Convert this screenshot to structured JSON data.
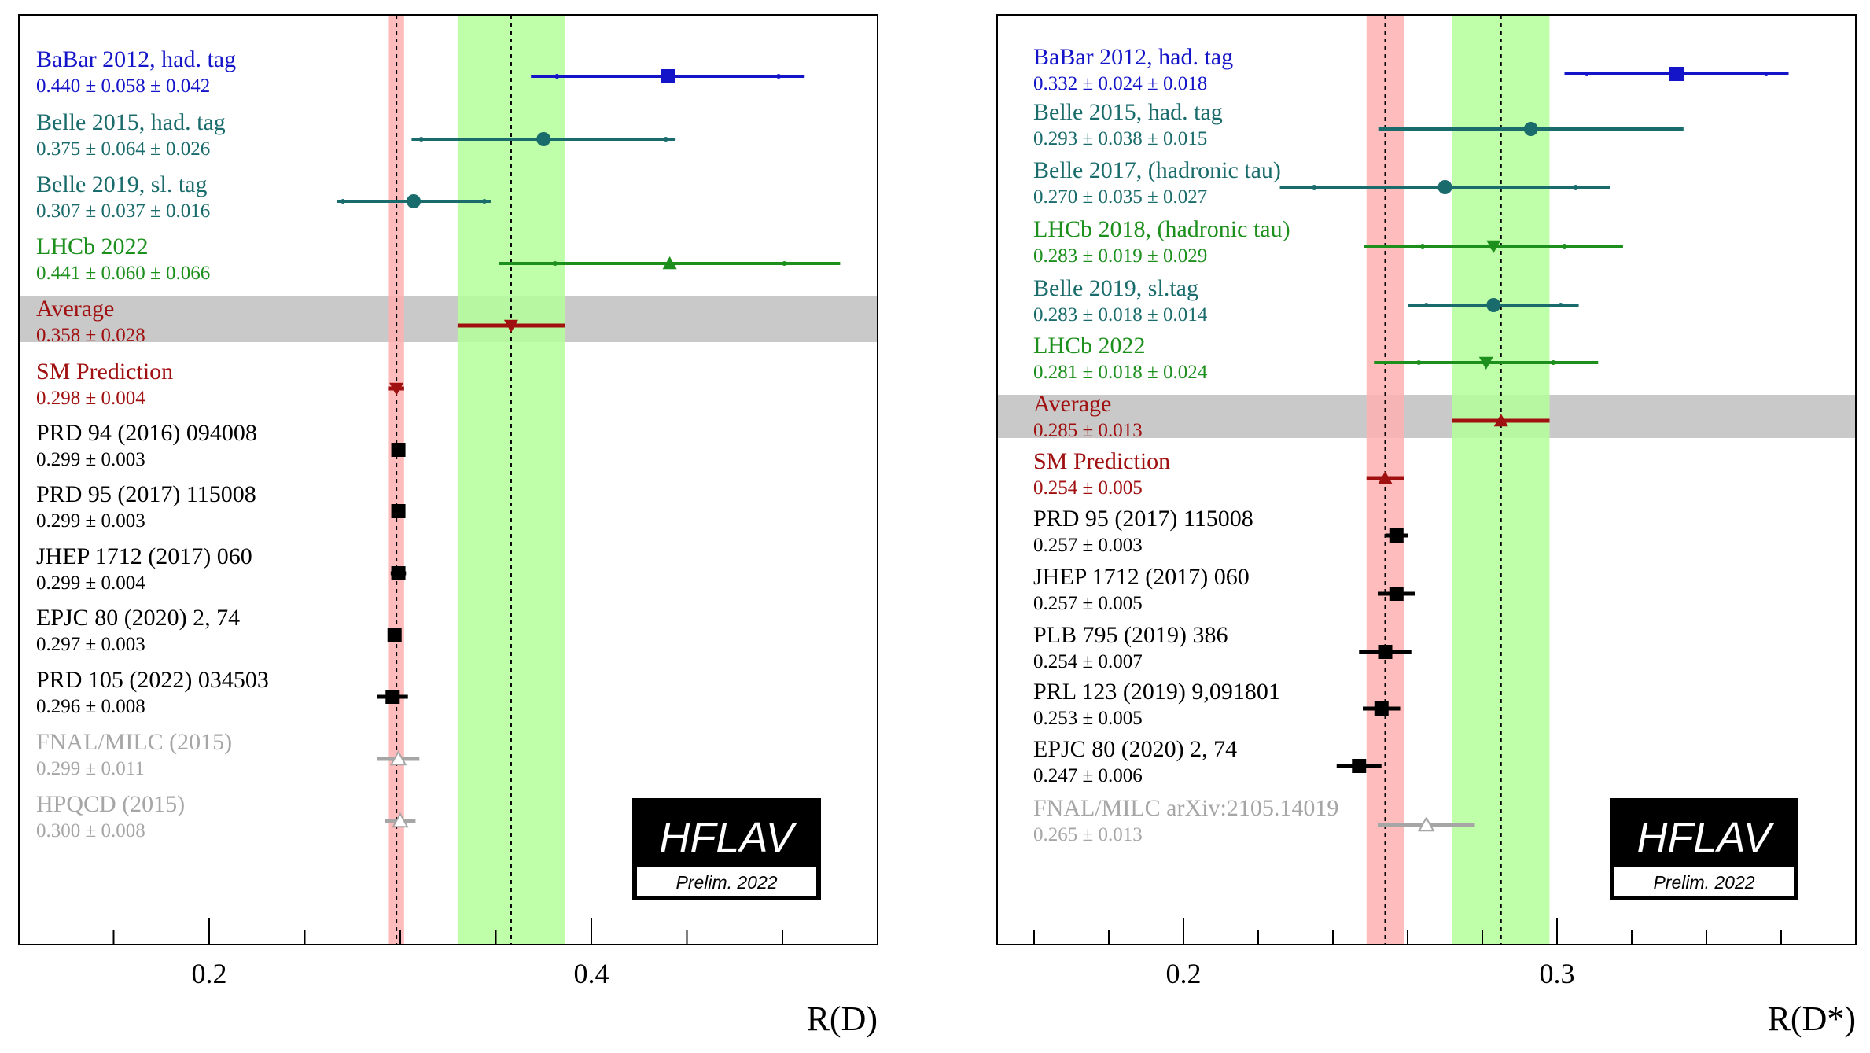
{
  "chart_data": [
    {
      "type": "forest",
      "xlabel": "R(D)",
      "xlim": [
        0.1,
        0.55
      ],
      "ticks": [
        0.2,
        0.4
      ],
      "minor_ticks": [
        0.15,
        0.25,
        0.3,
        0.35,
        0.45,
        0.5
      ],
      "sm_band": {
        "center": 0.298,
        "err": 0.004
      },
      "average_band": {
        "center": 0.358,
        "err": 0.028
      },
      "logo": {
        "text": "HFLAV",
        "subtext": "Prelim. 2022"
      },
      "entries": [
        {
          "name": "BaBar 2012, had. tag",
          "value_text": "0.440 ± 0.058 ± 0.042",
          "value": 0.44,
          "stat": 0.058,
          "syst": 0.042,
          "color": "#1414c8",
          "marker": "square"
        },
        {
          "name": "Belle 2015, had. tag",
          "value_text": "0.375 ± 0.064 ± 0.026",
          "value": 0.375,
          "stat": 0.064,
          "syst": 0.026,
          "color": "#1a6b6b",
          "marker": "circle"
        },
        {
          "name": "Belle 2019, sl. tag",
          "value_text": "0.307 ± 0.037 ± 0.016",
          "value": 0.307,
          "stat": 0.037,
          "syst": 0.016,
          "color": "#1a6b6b",
          "marker": "circle"
        },
        {
          "name": "LHCb 2022",
          "value_text": "0.441 ± 0.060 ± 0.066",
          "value": 0.441,
          "stat": 0.06,
          "syst": 0.066,
          "color": "#1c8f1c",
          "marker": "triangle-up"
        },
        {
          "name": "Average",
          "value_text": "0.358 ± 0.028",
          "value": 0.358,
          "stat": 0.028,
          "syst": 0,
          "color": "#a01010",
          "marker": "triangle-down",
          "highlight": true
        },
        {
          "name": "SM Prediction",
          "value_text": "0.298 ± 0.004",
          "value": 0.298,
          "stat": 0.004,
          "syst": 0,
          "color": "#a01010",
          "marker": "triangle-down"
        },
        {
          "name": "PRD 94 (2016) 094008",
          "value_text": "0.299 ± 0.003",
          "value": 0.299,
          "stat": 0.003,
          "syst": 0,
          "color": "#000000",
          "marker": "square"
        },
        {
          "name": "PRD 95 (2017) 115008",
          "value_text": "0.299 ± 0.003",
          "value": 0.299,
          "stat": 0.003,
          "syst": 0,
          "color": "#000000",
          "marker": "square"
        },
        {
          "name": "JHEP 1712 (2017) 060",
          "value_text": "0.299 ± 0.004",
          "value": 0.299,
          "stat": 0.004,
          "syst": 0,
          "color": "#000000",
          "marker": "square"
        },
        {
          "name": "EPJC 80 (2020) 2, 74",
          "value_text": "0.297 ± 0.003",
          "value": 0.297,
          "stat": 0.003,
          "syst": 0,
          "color": "#000000",
          "marker": "square"
        },
        {
          "name": "PRD 105 (2022) 034503",
          "value_text": "0.296 ± 0.008",
          "value": 0.296,
          "stat": 0.008,
          "syst": 0,
          "color": "#000000",
          "marker": "square"
        },
        {
          "name": "FNAL/MILC (2015)",
          "value_text": "0.299 ± 0.011",
          "value": 0.299,
          "stat": 0.011,
          "syst": 0,
          "color": "#a6a6a6",
          "marker": "triangle-open"
        },
        {
          "name": "HPQCD (2015)",
          "value_text": "0.300 ± 0.008",
          "value": 0.3,
          "stat": 0.008,
          "syst": 0,
          "color": "#a6a6a6",
          "marker": "triangle-open"
        }
      ]
    },
    {
      "type": "forest",
      "xlabel": "R(D*)",
      "xlim": [
        0.15,
        0.38
      ],
      "ticks": [
        0.2,
        0.3
      ],
      "minor_ticks": [
        0.16,
        0.18,
        0.22,
        0.24,
        0.26,
        0.28,
        0.32,
        0.34,
        0.36
      ],
      "sm_band": {
        "center": 0.254,
        "err": 0.005
      },
      "average_band": {
        "center": 0.285,
        "err": 0.013
      },
      "logo": {
        "text": "HFLAV",
        "subtext": "Prelim. 2022"
      },
      "entries": [
        {
          "name": "BaBar 2012, had. tag",
          "value_text": "0.332 ± 0.024 ± 0.018",
          "value": 0.332,
          "stat": 0.024,
          "syst": 0.018,
          "color": "#1414c8",
          "marker": "square"
        },
        {
          "name": "Belle 2015, had. tag",
          "value_text": "0.293 ± 0.038 ± 0.015",
          "value": 0.293,
          "stat": 0.038,
          "syst": 0.015,
          "color": "#1a6b6b",
          "marker": "circle"
        },
        {
          "name": "Belle 2017, (hadronic tau)",
          "value_text": "0.270 ± 0.035 ± 0.027",
          "value": 0.27,
          "stat": 0.035,
          "syst": 0.027,
          "color": "#1a6b6b",
          "marker": "circle"
        },
        {
          "name": "LHCb 2018, (hadronic tau)",
          "value_text": "0.283 ± 0.019 ± 0.029",
          "value": 0.283,
          "stat": 0.019,
          "syst": 0.029,
          "color": "#1c8f1c",
          "marker": "triangle-down"
        },
        {
          "name": "Belle 2019, sl.tag",
          "value_text": "0.283 ± 0.018 ± 0.014",
          "value": 0.283,
          "stat": 0.018,
          "syst": 0.014,
          "color": "#1a6b6b",
          "marker": "circle"
        },
        {
          "name": "LHCb 2022",
          "value_text": "0.281 ± 0.018 ± 0.024",
          "value": 0.281,
          "stat": 0.018,
          "syst": 0.024,
          "color": "#1c8f1c",
          "marker": "triangle-down"
        },
        {
          "name": "Average",
          "value_text": "0.285 ± 0.013",
          "value": 0.285,
          "stat": 0.013,
          "syst": 0,
          "color": "#a01010",
          "marker": "triangle-up",
          "highlight": true
        },
        {
          "name": "SM Prediction",
          "value_text": "0.254 ± 0.005",
          "value": 0.254,
          "stat": 0.005,
          "syst": 0,
          "color": "#a01010",
          "marker": "triangle-up"
        },
        {
          "name": "PRD 95 (2017) 115008",
          "value_text": "0.257 ± 0.003",
          "value": 0.257,
          "stat": 0.003,
          "syst": 0,
          "color": "#000000",
          "marker": "square"
        },
        {
          "name": "JHEP 1712 (2017) 060",
          "value_text": "0.257 ± 0.005",
          "value": 0.257,
          "stat": 0.005,
          "syst": 0,
          "color": "#000000",
          "marker": "square"
        },
        {
          "name": "PLB 795 (2019) 386",
          "value_text": "0.254 ± 0.007",
          "value": 0.254,
          "stat": 0.007,
          "syst": 0,
          "color": "#000000",
          "marker": "square"
        },
        {
          "name": "PRL 123 (2019) 9,091801",
          "value_text": "0.253 ± 0.005",
          "value": 0.253,
          "stat": 0.005,
          "syst": 0,
          "color": "#000000",
          "marker": "square"
        },
        {
          "name": "EPJC 80 (2020) 2, 74",
          "value_text": "0.247 ± 0.006",
          "value": 0.247,
          "stat": 0.006,
          "syst": 0,
          "color": "#000000",
          "marker": "square"
        },
        {
          "name": "FNAL/MILC arXiv:2105.14019",
          "value_text": "0.265 ± 0.013",
          "value": 0.265,
          "stat": 0.013,
          "syst": 0,
          "color": "#a6a6a6",
          "marker": "triangle-open"
        }
      ]
    }
  ]
}
